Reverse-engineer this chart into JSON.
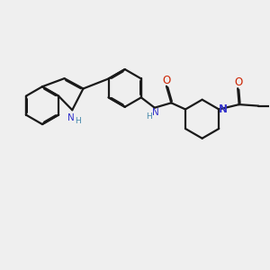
{
  "bg_color": "#efefef",
  "bond_color": "#1a1a1a",
  "nitrogen_color": "#3333cc",
  "nh_color": "#4488aa",
  "oxygen_color": "#cc2200",
  "line_width": 1.6,
  "dbo": 0.038,
  "figsize": [
    3.0,
    3.0
  ],
  "dpi": 100,
  "xlim": [
    0,
    10
  ],
  "ylim": [
    0,
    10
  ]
}
